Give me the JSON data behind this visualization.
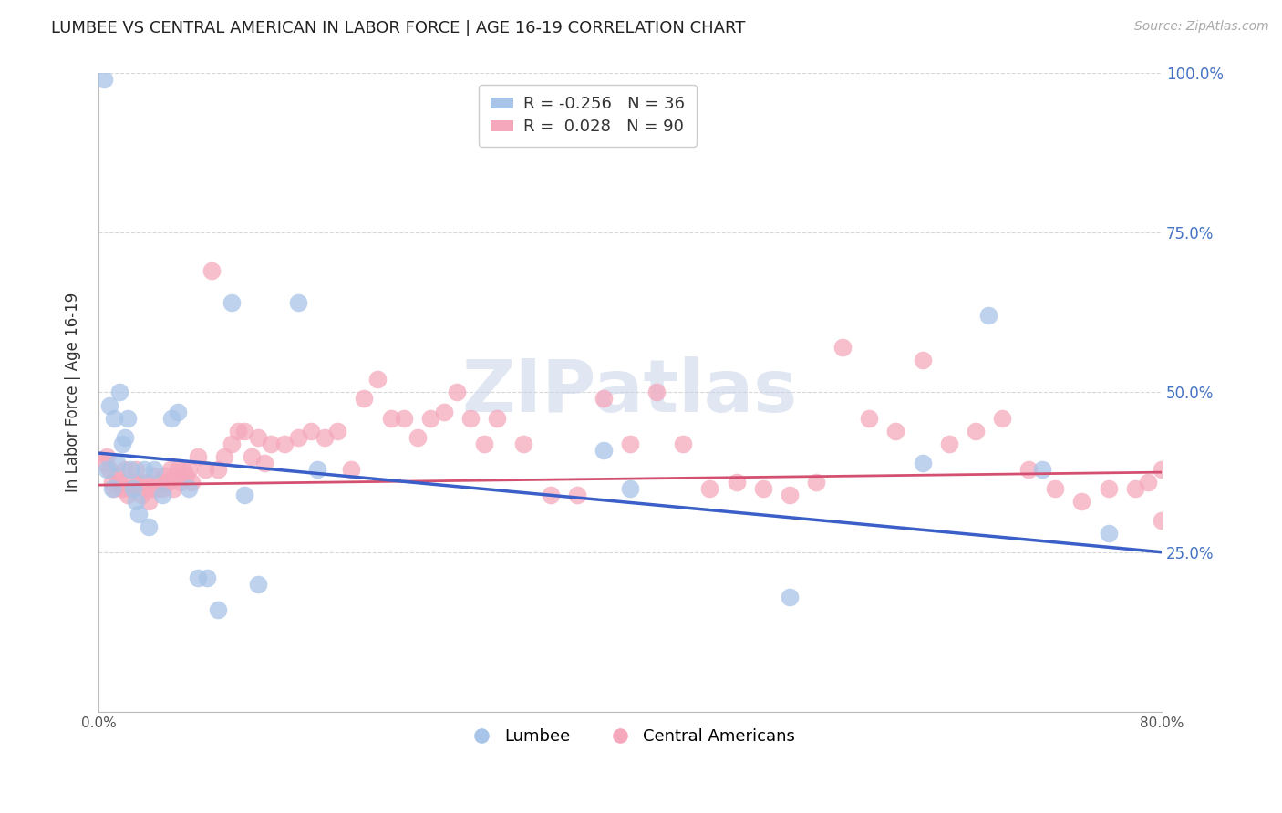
{
  "title": "LUMBEE VS CENTRAL AMERICAN IN LABOR FORCE | AGE 16-19 CORRELATION CHART",
  "source_text": "Source: ZipAtlas.com",
  "ylabel": "In Labor Force | Age 16-19",
  "xlim": [
    0.0,
    0.8
  ],
  "ylim": [
    0.0,
    1.0
  ],
  "legend_lumbee": "Lumbee",
  "legend_ca": "Central Americans",
  "R_lumbee": -0.256,
  "N_lumbee": 36,
  "R_ca": 0.028,
  "N_ca": 90,
  "lumbee_color": "#a8c4e8",
  "ca_color": "#f5a8bc",
  "lumbee_line_color": "#3a5fc8",
  "ca_line_color": "#d45070",
  "watermark": "ZIPatlas",
  "watermark_color": "#c8d4e8",
  "background_color": "#ffffff",
  "grid_color": "#d8d8d8",
  "lumbee_x": [
    0.004,
    0.006,
    0.008,
    0.01,
    0.012,
    0.014,
    0.016,
    0.018,
    0.02,
    0.022,
    0.024,
    0.026,
    0.028,
    0.03,
    0.034,
    0.038,
    0.042,
    0.048,
    0.055,
    0.06,
    0.068,
    0.075,
    0.082,
    0.09,
    0.1,
    0.11,
    0.12,
    0.15,
    0.165,
    0.38,
    0.4,
    0.52,
    0.62,
    0.67,
    0.71,
    0.76
  ],
  "lumbee_y": [
    0.99,
    0.38,
    0.48,
    0.35,
    0.46,
    0.39,
    0.5,
    0.42,
    0.43,
    0.46,
    0.38,
    0.35,
    0.33,
    0.31,
    0.38,
    0.29,
    0.38,
    0.34,
    0.46,
    0.47,
    0.35,
    0.21,
    0.21,
    0.16,
    0.64,
    0.34,
    0.2,
    0.64,
    0.38,
    0.41,
    0.35,
    0.18,
    0.39,
    0.62,
    0.38,
    0.28
  ],
  "ca_x": [
    0.004,
    0.006,
    0.008,
    0.01,
    0.012,
    0.014,
    0.016,
    0.018,
    0.02,
    0.022,
    0.024,
    0.026,
    0.028,
    0.03,
    0.032,
    0.034,
    0.036,
    0.038,
    0.04,
    0.042,
    0.044,
    0.046,
    0.048,
    0.05,
    0.052,
    0.054,
    0.056,
    0.058,
    0.06,
    0.062,
    0.064,
    0.066,
    0.068,
    0.07,
    0.075,
    0.08,
    0.085,
    0.09,
    0.095,
    0.1,
    0.105,
    0.11,
    0.115,
    0.12,
    0.125,
    0.13,
    0.14,
    0.15,
    0.16,
    0.17,
    0.18,
    0.19,
    0.2,
    0.21,
    0.22,
    0.23,
    0.24,
    0.25,
    0.26,
    0.27,
    0.28,
    0.29,
    0.3,
    0.32,
    0.34,
    0.36,
    0.38,
    0.4,
    0.42,
    0.44,
    0.46,
    0.48,
    0.5,
    0.52,
    0.54,
    0.56,
    0.58,
    0.6,
    0.62,
    0.64,
    0.66,
    0.68,
    0.7,
    0.72,
    0.74,
    0.76,
    0.78,
    0.79,
    0.8,
    0.8
  ],
  "ca_y": [
    0.39,
    0.4,
    0.38,
    0.36,
    0.35,
    0.37,
    0.36,
    0.35,
    0.38,
    0.34,
    0.35,
    0.36,
    0.38,
    0.36,
    0.34,
    0.35,
    0.36,
    0.33,
    0.35,
    0.37,
    0.35,
    0.36,
    0.35,
    0.37,
    0.36,
    0.38,
    0.35,
    0.37,
    0.38,
    0.36,
    0.38,
    0.37,
    0.38,
    0.36,
    0.4,
    0.38,
    0.69,
    0.38,
    0.4,
    0.42,
    0.44,
    0.44,
    0.4,
    0.43,
    0.39,
    0.42,
    0.42,
    0.43,
    0.44,
    0.43,
    0.44,
    0.38,
    0.49,
    0.52,
    0.46,
    0.46,
    0.43,
    0.46,
    0.47,
    0.5,
    0.46,
    0.42,
    0.46,
    0.42,
    0.34,
    0.34,
    0.49,
    0.42,
    0.5,
    0.42,
    0.35,
    0.36,
    0.35,
    0.34,
    0.36,
    0.57,
    0.46,
    0.44,
    0.55,
    0.42,
    0.44,
    0.46,
    0.38,
    0.35,
    0.33,
    0.35,
    0.35,
    0.36,
    0.38,
    0.3
  ]
}
